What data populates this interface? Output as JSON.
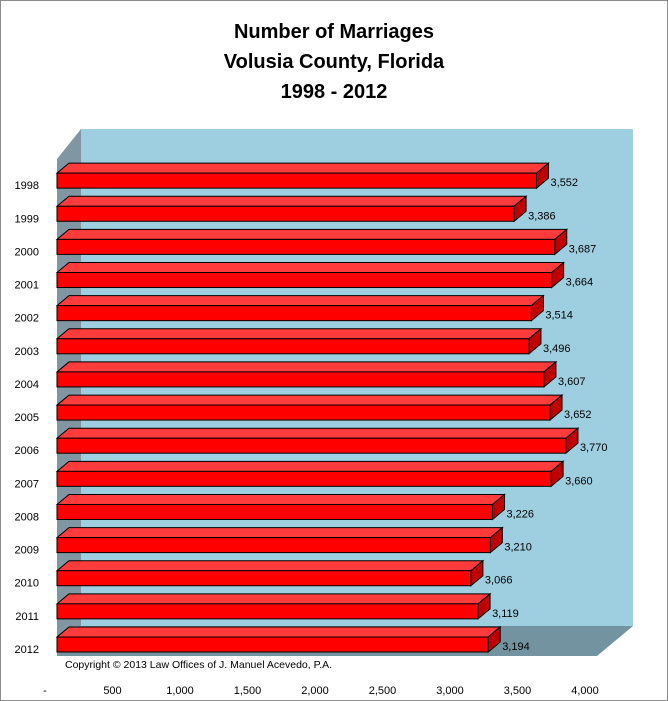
{
  "chart_data": {
    "type": "bar",
    "orientation": "horizontal",
    "title_lines": [
      "Number of Marriages",
      "Volusia County, Florida",
      "1998 - 2012"
    ],
    "categories": [
      "1998",
      "1999",
      "2000",
      "2001",
      "2002",
      "2003",
      "2004",
      "2005",
      "2006",
      "2007",
      "2008",
      "2009",
      "2010",
      "2011",
      "2012"
    ],
    "values": [
      3552,
      3386,
      3687,
      3664,
      3514,
      3496,
      3607,
      3652,
      3770,
      3660,
      3226,
      3210,
      3066,
      3119,
      3194
    ],
    "value_labels": [
      "3,552",
      "3,386",
      "3,687",
      "3,664",
      "3,514",
      "3,496",
      "3,607",
      "3,652",
      "3,770",
      "3,660",
      "3,226",
      "3,210",
      "3,066",
      "3,119",
      "3,194"
    ],
    "x_ticks": [
      0,
      500,
      1000,
      1500,
      2000,
      2500,
      3000,
      3500,
      4000
    ],
    "x_tick_labels": [
      "-",
      "500",
      "1,000",
      "1,500",
      "2,000",
      "2,500",
      "3,000",
      "3,500",
      "4,000"
    ],
    "xlim": [
      0,
      4000
    ],
    "xlabel": "",
    "ylabel": "",
    "grid": false,
    "legend": "none",
    "style": "3d",
    "colors": {
      "bar_front": "#ff0000",
      "bar_top": "#ff3b3b",
      "bar_side": "#c00000",
      "back_wall": "#9ecfe0",
      "side_wall": "#8097a3",
      "floor": "#7393a0"
    }
  },
  "copyright": "Copyright © 2013 Law Offices of J. Manuel Acevedo, P.A."
}
